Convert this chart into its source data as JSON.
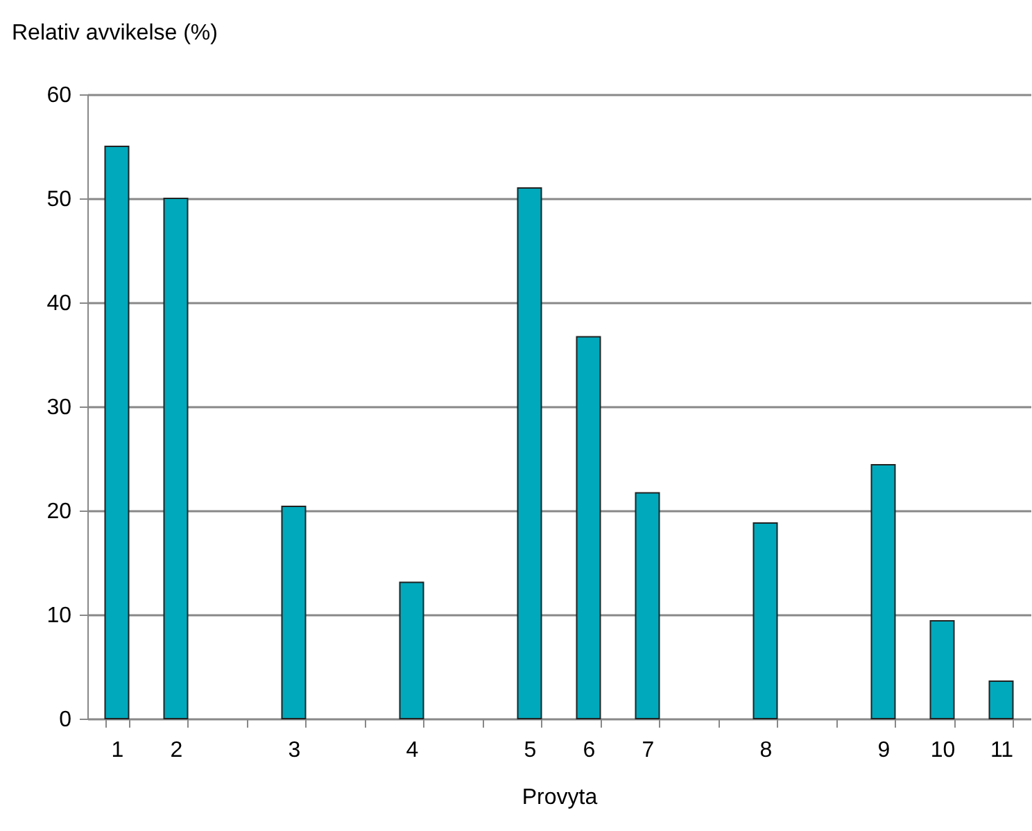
{
  "chart_data": {
    "type": "bar",
    "xlabel": "Provyta",
    "ylabel": "Relativ avvikelse (%)",
    "categories": [
      "1",
      "2",
      null,
      "3",
      null,
      "4",
      null,
      "5",
      "6",
      "7",
      null,
      "8",
      null,
      "9",
      "10",
      "11"
    ],
    "values": [
      55.0,
      50.0,
      null,
      20.4,
      null,
      13.1,
      null,
      51.0,
      36.7,
      21.7,
      null,
      18.8,
      null,
      24.4,
      9.4,
      3.6
    ],
    "color": "#00a9bc",
    "ylim": [
      0,
      60
    ],
    "yticks": [
      0,
      10,
      20,
      30,
      40,
      50,
      60
    ],
    "grid": "y"
  }
}
